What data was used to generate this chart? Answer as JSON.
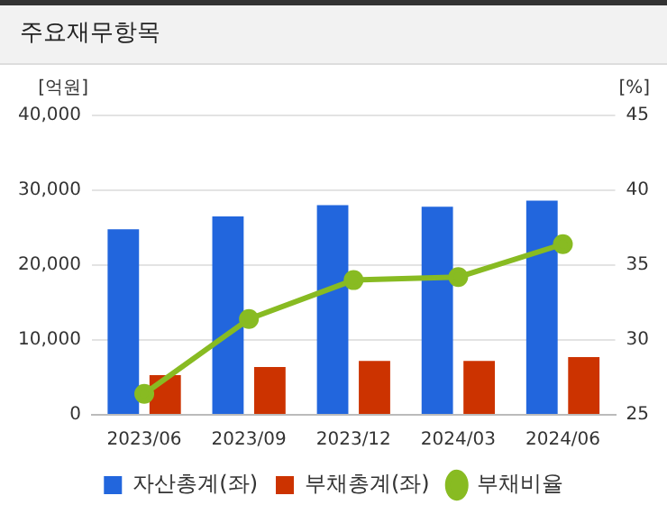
{
  "chart_data": {
    "type": "bar",
    "title": "주요재무항목",
    "ylabel": "[억원]",
    "y2label": "[%]",
    "categories": [
      "2023/06",
      "2023/09",
      "2023/12",
      "2024/03",
      "2024/06"
    ],
    "series": [
      {
        "name": "자산총계(좌)",
        "color": "#2266dd",
        "values": [
          24800,
          26500,
          28000,
          27800,
          28600
        ]
      },
      {
        "name": "부채총계(좌)",
        "color": "#cc3300",
        "values": [
          5300,
          6400,
          7200,
          7200,
          7700
        ]
      },
      {
        "name": "부채비율",
        "type": "line",
        "axis": "y2",
        "color": "#88bb22",
        "values": [
          26.4,
          31.4,
          34.0,
          34.2,
          36.4
        ],
        "marker": "circle"
      }
    ],
    "ylim": [
      0,
      40000
    ],
    "yticks": [
      0,
      {
        "value": 10000,
        "label": "10,000"
      },
      {
        "value": 20000,
        "label": "20,000"
      },
      {
        "value": 30000,
        "label": "30,000"
      },
      {
        "value": 40000,
        "label": "40,000"
      }
    ],
    "y2lim": [
      25,
      45
    ],
    "y2ticks": [
      25,
      30,
      35,
      40,
      45
    ],
    "grid": "y",
    "legend": "bottom"
  }
}
